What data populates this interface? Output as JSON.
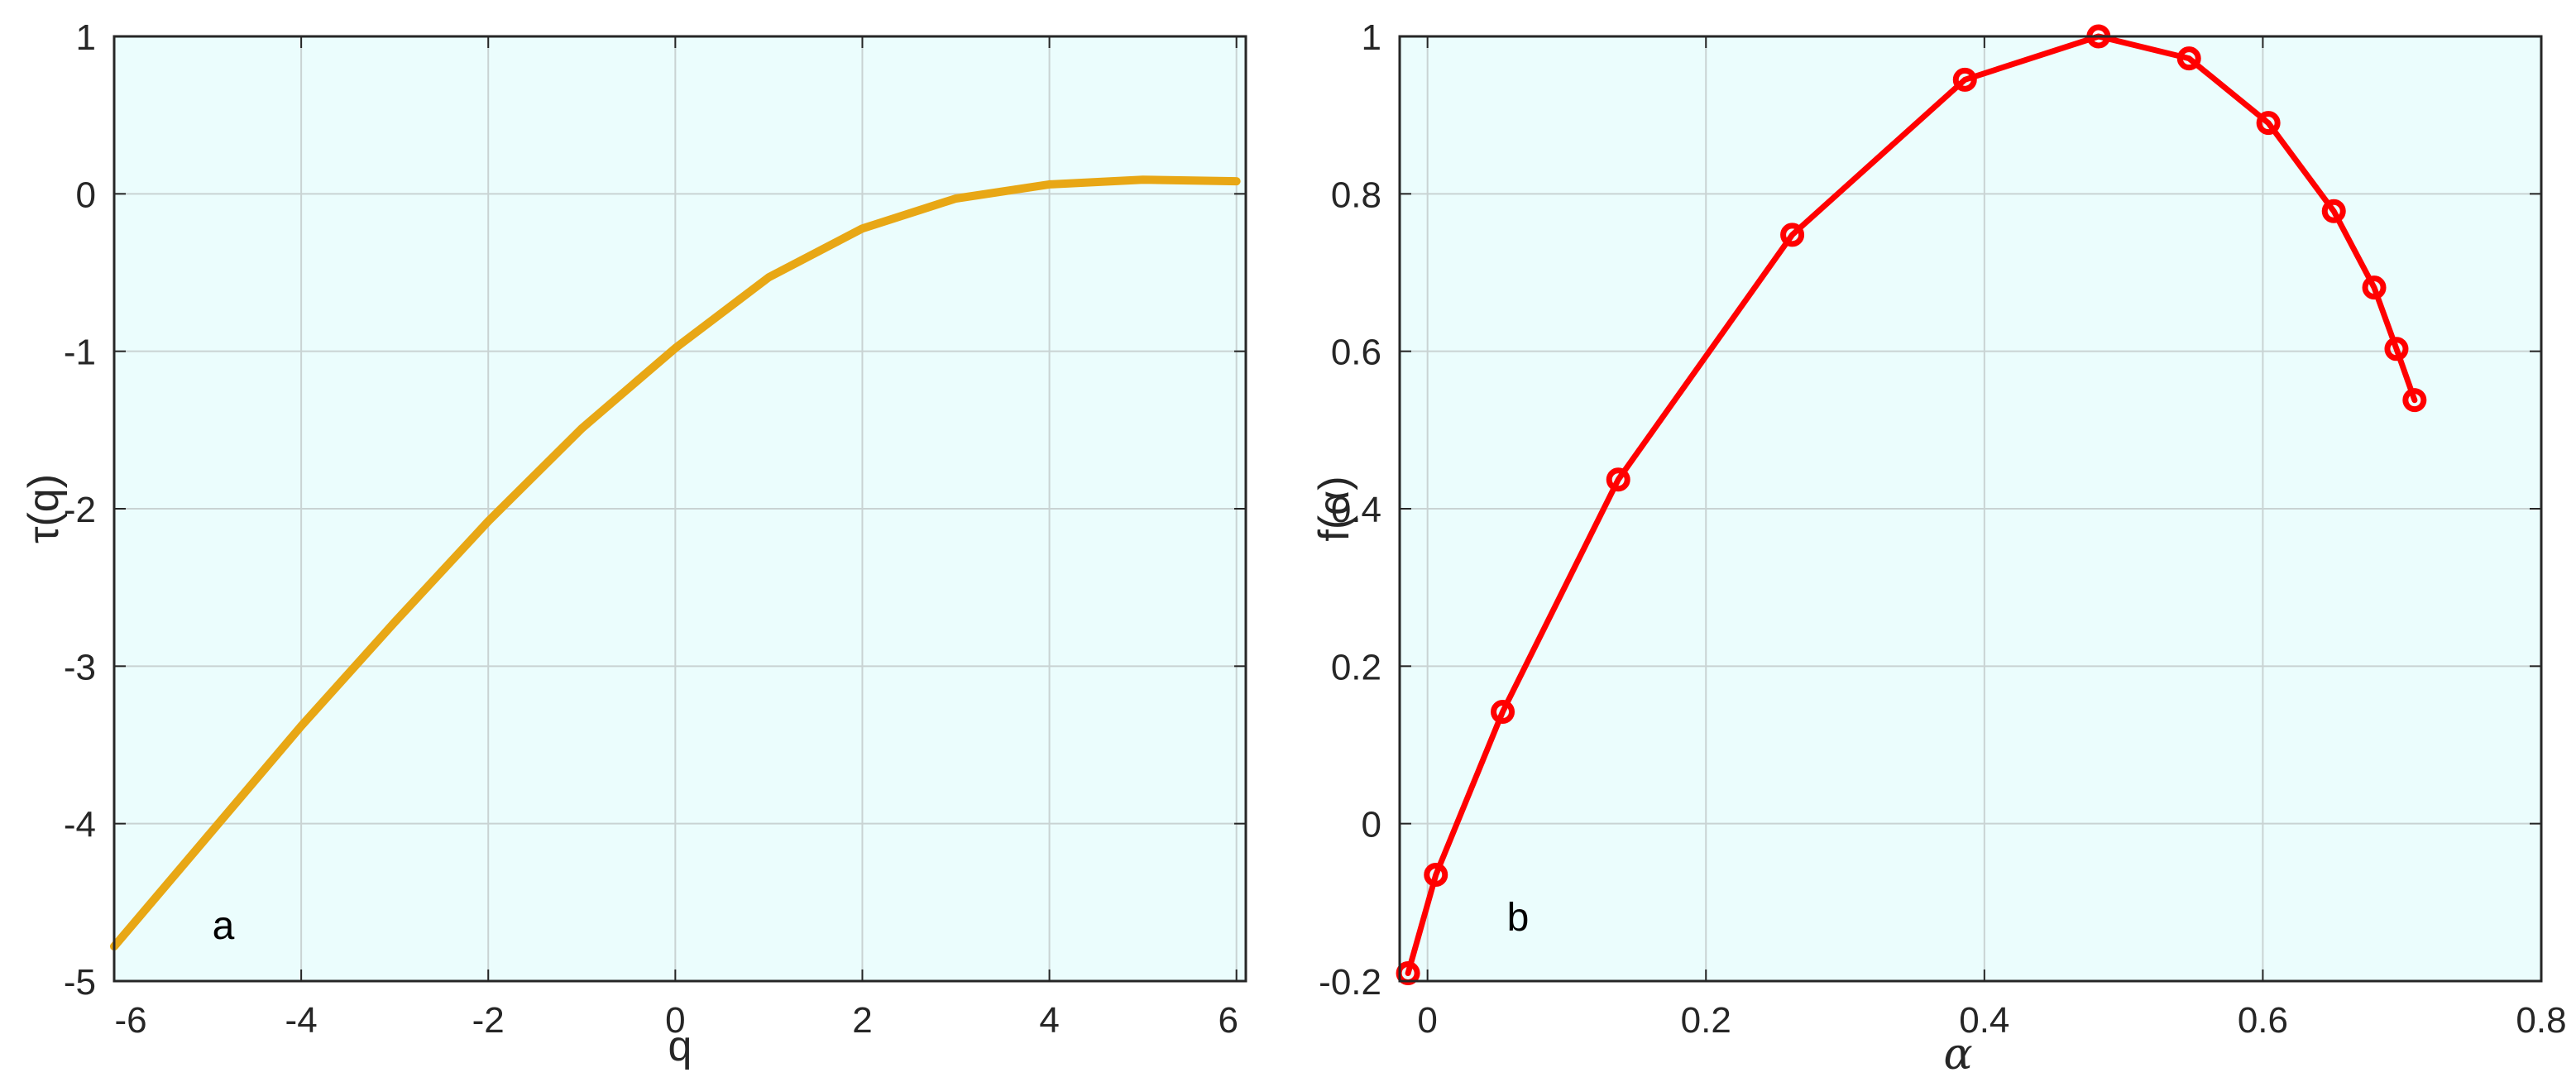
{
  "chart_data": [
    {
      "type": "line",
      "panel_label": "a",
      "xlabel": "q",
      "ylabel": "τ(q)",
      "xlim": [
        -6,
        6.1
      ],
      "ylim": [
        -5,
        1
      ],
      "xticks": [
        -6,
        -4,
        -2,
        0,
        2,
        4,
        6
      ],
      "yticks": [
        1,
        0,
        -1,
        -2,
        -3,
        -4,
        -5
      ],
      "grid": true,
      "background": "#ebfdfd",
      "series": [
        {
          "color": "#e8a715",
          "markers": false,
          "x": [
            -6,
            -5,
            -4,
            -3,
            -2,
            -1,
            0,
            1,
            2,
            3,
            4,
            5,
            6
          ],
          "y": [
            -4.78,
            -4.08,
            -3.38,
            -2.72,
            -2.08,
            -1.49,
            -0.98,
            -0.53,
            -0.22,
            -0.03,
            0.06,
            0.09,
            0.08
          ]
        }
      ]
    },
    {
      "type": "line",
      "panel_label": "b",
      "xlabel": "α",
      "ylabel": "f(α)",
      "xlim": [
        -0.02,
        0.8
      ],
      "ylim": [
        -0.2,
        1
      ],
      "xticks": [
        0,
        0.2,
        0.4,
        0.6,
        0.8
      ],
      "yticks": [
        1,
        0.8,
        0.6,
        0.4,
        0.2,
        0,
        -0.2
      ],
      "grid": true,
      "background": "#ebfdfd",
      "series": [
        {
          "color": "#ff0000",
          "markers": true,
          "x": [
            -0.014,
            0.006,
            0.054,
            0.137,
            0.262,
            0.386,
            0.482,
            0.547,
            0.604,
            0.651,
            0.68,
            0.696,
            0.709
          ],
          "y": [
            -0.19,
            -0.065,
            0.142,
            0.437,
            0.748,
            0.945,
            1.0,
            0.972,
            0.89,
            0.778,
            0.681,
            0.603,
            0.538
          ]
        }
      ]
    }
  ]
}
